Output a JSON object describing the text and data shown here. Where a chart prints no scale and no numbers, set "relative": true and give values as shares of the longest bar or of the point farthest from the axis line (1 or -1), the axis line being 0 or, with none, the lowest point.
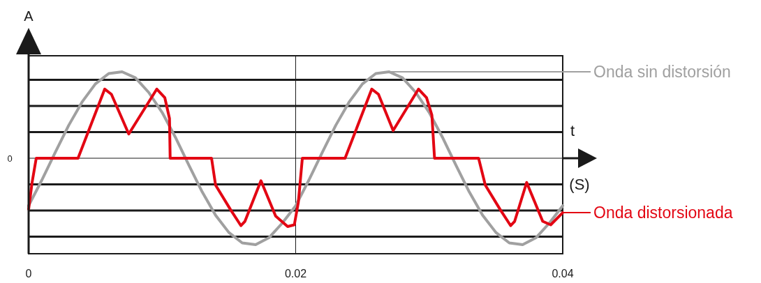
{
  "chart_data": {
    "type": "line",
    "ylabel": "A",
    "xlabel": "t",
    "annotations": [
      "(S)",
      "0"
    ],
    "relative": true,
    "xlim": [
      0,
      0.04
    ],
    "xticks": [
      0,
      0.02,
      0.04
    ],
    "grid": true,
    "legend": "right",
    "marker": "none",
    "line_style": "solid",
    "series": [
      {
        "name": "Onda sin distorsión",
        "color": "#a0a0a0",
        "x": [
          0,
          0.001,
          0.002,
          0.003,
          0.004,
          0.005,
          0.006,
          0.007,
          0.008,
          0.009,
          0.01,
          0.011,
          0.012,
          0.013,
          0.014,
          0.015,
          0.016,
          0.017,
          0.018,
          0.019,
          0.02,
          0.021,
          0.022,
          0.023,
          0.024,
          0.025,
          0.026,
          0.027,
          0.028,
          0.029,
          0.03,
          0.031,
          0.032,
          0.033,
          0.034,
          0.035,
          0.036,
          0.037,
          0.038,
          0.039,
          0.04
        ],
        "values": [
          -0.55,
          -0.25,
          0.07,
          0.38,
          0.65,
          0.86,
          0.98,
          1,
          0.93,
          0.76,
          0.53,
          0.24,
          -0.08,
          -0.39,
          -0.66,
          -0.86,
          -0.98,
          -1,
          -0.92,
          -0.75,
          -0.55,
          -0.25,
          0.07,
          0.38,
          0.65,
          0.86,
          0.98,
          1,
          0.93,
          0.76,
          0.53,
          0.24,
          -0.08,
          -0.39,
          -0.66,
          -0.86,
          -0.98,
          -1,
          -0.92,
          -0.75,
          -0.55
        ]
      },
      {
        "name": "Onda distorsionada",
        "color": "#e30613",
        "x": [
          0,
          0.00026,
          0.00057,
          0.0037,
          0.0057,
          0.0062,
          0.0075,
          0.0096,
          0.0102,
          0.01055,
          0.0106,
          0.0137,
          0.014,
          0.0151,
          0.0159,
          0.0162,
          0.0174,
          0.0185,
          0.0194,
          0.0199,
          0.0202,
          0.0205,
          0.0237,
          0.0257,
          0.0262,
          0.0273,
          0.0292,
          0.0298,
          0.0302,
          0.0304,
          0.0337,
          0.0342,
          0.0353,
          0.0361,
          0.0364,
          0.0373,
          0.0385,
          0.0391,
          0.04
        ],
        "values": [
          -0.59,
          -0.28,
          0,
          0,
          0.8,
          0.74,
          0.28,
          0.8,
          0.7,
          0.46,
          0,
          0,
          -0.31,
          -0.59,
          -0.78,
          -0.73,
          -0.26,
          -0.67,
          -0.79,
          -0.77,
          -0.51,
          0,
          0,
          0.8,
          0.74,
          0.32,
          0.8,
          0.7,
          0.5,
          0,
          0,
          -0.31,
          -0.59,
          -0.78,
          -0.73,
          -0.28,
          -0.73,
          -0.77,
          -0.63
        ]
      }
    ]
  }
}
